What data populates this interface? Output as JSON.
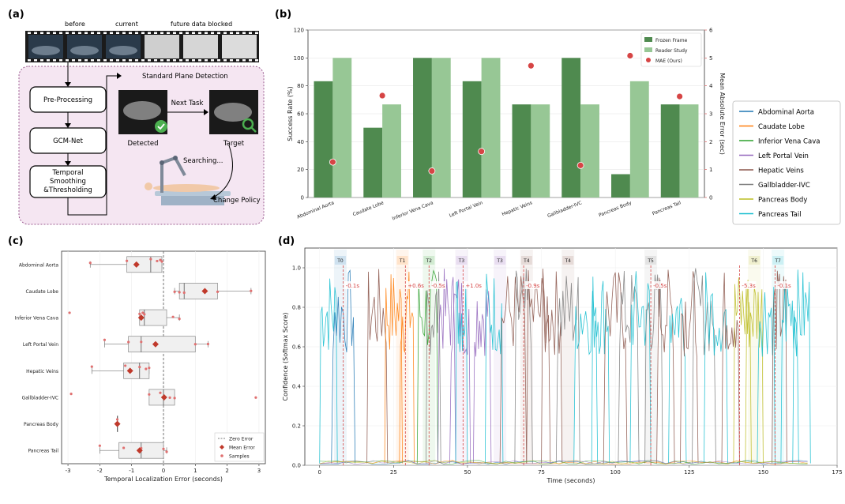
{
  "panel_a": {
    "label": "(a)",
    "strip": {
      "before": "before",
      "current": "current",
      "future": "future data blocked"
    },
    "flow": {
      "step1": "Pre-Processing",
      "step2": "GCM-Net",
      "step3_l1": "Temporal",
      "step3_l2": "Smoothing",
      "step3_l3": "&Thresholding",
      "spd": "Standard Plane Detection",
      "next_task": "Next Task",
      "detected": "Detected",
      "target": "Target",
      "searching": "Searching...",
      "change_policy": "Change Policy"
    }
  },
  "chart_data": [
    {
      "id": "b",
      "label": "(b)",
      "type": "bar",
      "categories": [
        "Abdominal Aorta",
        "Caudate Lobe",
        "Inferior Vena Cava",
        "Left Portal Vein",
        "Hepatic Veins",
        "Gallbladder-IVC",
        "Pancreas Body",
        "Pancreas Tail"
      ],
      "series": [
        {
          "name": "Frozen Frame",
          "values": [
            83.3,
            50,
            100,
            83.3,
            66.7,
            100,
            16.7,
            66.7
          ],
          "color": "#4f8a4f"
        },
        {
          "name": "Reader Study",
          "values": [
            100,
            66.7,
            100,
            100,
            66.7,
            66.7,
            83.3,
            66.7
          ],
          "color": "#97c795"
        },
        {
          "name": "MAE (Ours)",
          "type": "scatter",
          "axis": "right",
          "values": [
            1.27,
            3.65,
            0.95,
            1.65,
            4.72,
            1.15,
            5.08,
            3.62
          ],
          "color": "#d64545"
        }
      ],
      "ylabel": "Success Rate (%)",
      "ylabel_right": "Mean Absolute Error (sec)",
      "ylim": [
        0,
        120
      ],
      "ylim_right": [
        0,
        6
      ],
      "yticks": [
        "0",
        "20",
        "40",
        "60",
        "80",
        "100",
        "120"
      ],
      "yticks_right": [
        "0",
        "1",
        "2",
        "3",
        "4",
        "5",
        "6"
      ],
      "legend_position": "top-right"
    },
    {
      "id": "c",
      "label": "(c)",
      "type": "box",
      "categories": [
        "Abdominal Aorta",
        "Caudate Lobe",
        "Inferior Vena Cava",
        "Left Portal Vein",
        "Hepatic Veins",
        "Gallbladder-IVC",
        "Pancreas Body",
        "Pancreas Tail"
      ],
      "boxes": [
        {
          "whisker_low": -2.3,
          "q1": -1.15,
          "median": -0.4,
          "q3": -0.05,
          "whisker_high": -0.05,
          "mean": -0.85,
          "samples": [
            -2.3,
            -1.15,
            -0.4,
            -0.2,
            -0.1,
            -0.05
          ]
        },
        {
          "whisker_low": 0.35,
          "q1": 0.5,
          "median": 0.65,
          "q3": 1.7,
          "whisker_high": 2.75,
          "mean": 1.3,
          "samples": [
            0.35,
            0.5,
            0.65,
            1.7,
            2.75
          ]
        },
        {
          "whisker_low": -0.75,
          "q1": -0.75,
          "median": -0.6,
          "q3": 0.1,
          "whisker_high": 0.5,
          "mean": -0.7,
          "samples": [
            -2.95,
            -0.75,
            -0.65,
            -0.6,
            0.3,
            0.5
          ]
        },
        {
          "whisker_low": -1.85,
          "q1": -1.1,
          "median": -0.7,
          "q3": 1.0,
          "whisker_high": 1.4,
          "mean": -0.25,
          "samples": [
            -1.85,
            -1.1,
            -0.7,
            1.0,
            1.4
          ]
        },
        {
          "whisker_low": -2.25,
          "q1": -1.25,
          "median": -0.75,
          "q3": -0.45,
          "whisker_high": -0.45,
          "mean": -1.05,
          "samples": [
            -2.25,
            -1.2,
            -0.75,
            -0.55,
            -0.45
          ]
        },
        {
          "whisker_low": -0.45,
          "q1": -0.45,
          "median": 0.0,
          "q3": 0.35,
          "whisker_high": 0.35,
          "mean": 0.02,
          "samples": [
            -2.9,
            -0.45,
            -0.1,
            0.05,
            0.2,
            0.35,
            2.9
          ]
        },
        {
          "whisker_low": -1.45,
          "q1": -1.45,
          "median": -1.45,
          "q3": -1.45,
          "whisker_high": -1.45,
          "mean": -1.45,
          "samples": [
            -1.45
          ]
        },
        {
          "whisker_low": -2.0,
          "q1": -1.4,
          "median": -0.7,
          "q3": 0.0,
          "whisker_high": 0.1,
          "mean": -0.75,
          "samples": [
            -2.0,
            -1.25,
            -0.7,
            0.0,
            0.1
          ]
        }
      ],
      "xlabel": "Temporal Localization Error (seconds)",
      "xlim": [
        -3.2,
        3.2
      ],
      "xticks": [
        "-3",
        "-2",
        "-1",
        "0",
        "1",
        "2",
        "3"
      ],
      "legend": {
        "zero": "Zero Error",
        "mean": "Mean Error",
        "samples": "Samples"
      },
      "legend_position": "bottom-right"
    },
    {
      "id": "d",
      "label": "(d)",
      "type": "line",
      "xlabel": "Time (seconds)",
      "ylabel": "Confidence (Softmax Score)",
      "xlim": [
        -5,
        175
      ],
      "ylim": [
        0,
        1.1
      ],
      "xticks": [
        "0",
        "25",
        "50",
        "75",
        "100",
        "125",
        "150",
        "175"
      ],
      "yticks": [
        "0.0",
        "0.2",
        "0.4",
        "0.6",
        "0.8",
        "1.0"
      ],
      "series_names": [
        "Abdominal Aorta",
        "Caudate Lobe",
        "Inferior Vena Cava",
        "Left Portal Vein",
        "Hepatic Veins",
        "Gallbladder-IVC",
        "Pancreas Body",
        "Pancreas Tail"
      ],
      "series_colors": [
        "#1f77b4",
        "#ff7f0e",
        "#2ca02c",
        "#9467bd",
        "#8c564b",
        "#7f7f7f",
        "#bcbd22",
        "#17becf"
      ],
      "markers": [
        {
          "label": "T0",
          "t": 7,
          "pred": 8,
          "err": "-0.1s",
          "color": "#1f77b4"
        },
        {
          "label": "T1",
          "t": 28,
          "pred": 29,
          "err": "+0.6s",
          "color": "#ff7f0e"
        },
        {
          "label": "T2",
          "t": 37,
          "pred": 37,
          "err": "-0.5s",
          "color": "#2ca02c"
        },
        {
          "label": "T3",
          "t": 48,
          "pred": 48.5,
          "err": "+1.0s",
          "color": "#9467bd"
        },
        {
          "label": "T3",
          "t": 61,
          "pred": null,
          "err": "",
          "color": "#9467bd"
        },
        {
          "label": "T4",
          "t": 70,
          "pred": 69,
          "err": "-0.9s",
          "color": "#8c564b"
        },
        {
          "label": "T4",
          "t": 84,
          "pred": null,
          "err": "",
          "color": "#8c564b"
        },
        {
          "label": "T5",
          "t": 112,
          "pred": 112,
          "err": "-0.5s",
          "color": "#7f7f7f"
        },
        {
          "label": "T6",
          "t": 147,
          "pred": 142,
          "err": "-5.3s",
          "color": "#bcbd22"
        },
        {
          "label": "T7",
          "t": 155,
          "pred": 154,
          "err": "-0.1s",
          "color": "#17becf"
        }
      ]
    }
  ]
}
